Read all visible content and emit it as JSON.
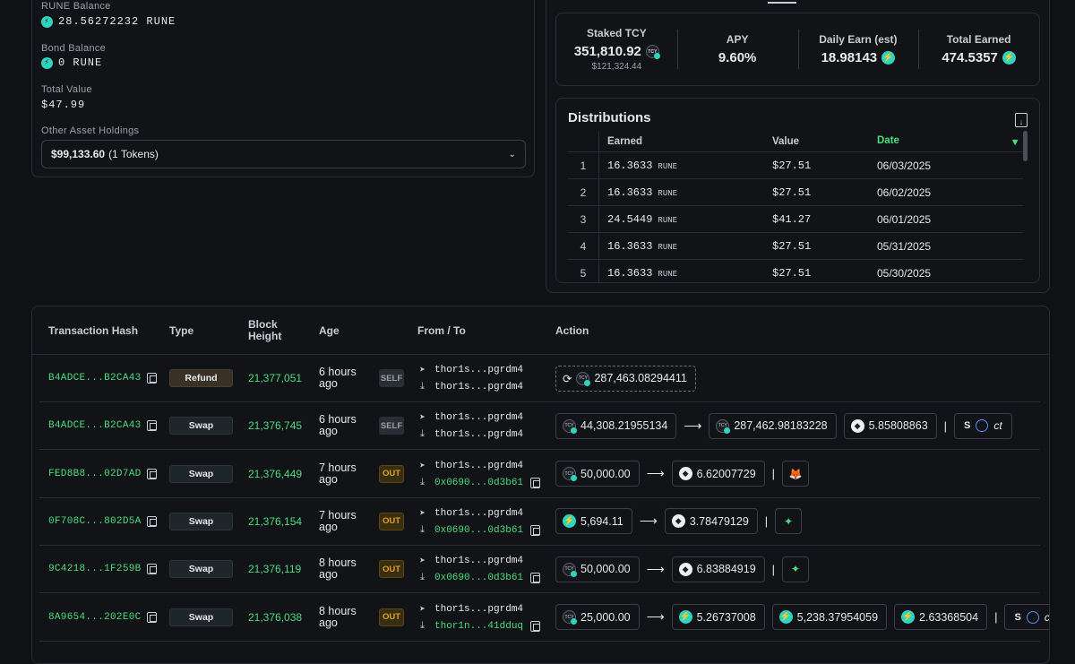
{
  "wallet": {
    "rune_balance_label": "RUNE Balance",
    "rune_balance_value": "28.56272232 RUNE",
    "bond_balance_label": "Bond Balance",
    "bond_balance_value": "0 RUNE",
    "total_value_label": "Total Value",
    "total_value": "$47.99",
    "other_holdings_label": "Other Asset Holdings",
    "other_holdings_amount": "$99,133.60",
    "other_holdings_count": "(1 Tokens)"
  },
  "stats": {
    "staked_label": "Staked TCY",
    "staked_value": "351,810.92",
    "staked_usd": "$121,324.44",
    "apy_label": "APY",
    "apy_value": "9.60%",
    "daily_label": "Daily Earn (est)",
    "daily_value": "18.98143",
    "total_label": "Total Earned",
    "total_value": "474.5357"
  },
  "distributions": {
    "title": "Distributions",
    "col_earned": "Earned",
    "col_value": "Value",
    "col_date": "Date",
    "rows": [
      {
        "idx": "1",
        "earned": "16.3633",
        "unit": "RUNE",
        "value": "$27.51",
        "date": "06/03/2025"
      },
      {
        "idx": "2",
        "earned": "16.3633",
        "unit": "RUNE",
        "value": "$27.51",
        "date": "06/02/2025"
      },
      {
        "idx": "3",
        "earned": "24.5449",
        "unit": "RUNE",
        "value": "$41.27",
        "date": "06/01/2025"
      },
      {
        "idx": "4",
        "earned": "16.3633",
        "unit": "RUNE",
        "value": "$27.51",
        "date": "05/31/2025"
      },
      {
        "idx": "5",
        "earned": "16.3633",
        "unit": "RUNE",
        "value": "$27.51",
        "date": "05/30/2025"
      }
    ]
  },
  "transactions": {
    "headers": {
      "hash": "Transaction Hash",
      "type": "Type",
      "block_line1": "Block",
      "block_line2": "Height",
      "age": "Age",
      "fromto": "From / To",
      "action": "Action"
    },
    "rows": [
      {
        "hash": "B4ADCE...B2CA43",
        "type": "Refund",
        "block": "21,377,051",
        "age1": "6 hours",
        "age2": "ago",
        "dir": "SELF",
        "from": "thor1s...pgrdm4",
        "to": "thor1s...pgrdm4"
      },
      {
        "hash": "B4ADCE...B2CA43",
        "type": "Swap",
        "block": "21,376,745",
        "age1": "6 hours",
        "age2": "ago",
        "dir": "SELF",
        "from": "thor1s...pgrdm4",
        "to": "thor1s...pgrdm4"
      },
      {
        "hash": "FED8B8...02D7AD",
        "type": "Swap",
        "block": "21,376,449",
        "age1": "7 hours",
        "age2": "ago",
        "dir": "OUT",
        "from": "thor1s...pgrdm4",
        "to": "0x0690...0d3b61"
      },
      {
        "hash": "0F708C...802D5A",
        "type": "Swap",
        "block": "21,376,154",
        "age1": "7 hours",
        "age2": "ago",
        "dir": "OUT",
        "from": "thor1s...pgrdm4",
        "to": "0x0690...0d3b61"
      },
      {
        "hash": "9C4218...1F259B",
        "type": "Swap",
        "block": "21,376,119",
        "age1": "8 hours",
        "age2": "ago",
        "dir": "OUT",
        "from": "thor1s...pgrdm4",
        "to": "0x0690...0d3b61"
      },
      {
        "hash": "8A9654...202E0C",
        "type": "Swap",
        "block": "21,376,038",
        "age1": "8 hours",
        "age2": "ago",
        "dir": "OUT",
        "from": "thor1s...pgrdm4",
        "to": "thor1n...41dduq"
      }
    ],
    "actions": {
      "r0_amount": "287,463.08294411",
      "r1_in": "44,308.21955134",
      "r1_out": "287,462.98183228",
      "r1_fee": "5.85808863",
      "r1_affiliate": "ct",
      "r2_in": "50,000.00",
      "r2_out": "6.62007729",
      "r3_in": "5,694.11",
      "r3_out": "3.78479129",
      "r4_in": "50,000.00",
      "r4_out": "6.83884919",
      "r5_in": "25,000.00",
      "r5_out1": "5.26737008",
      "r5_out2": "5,238.37954059",
      "r5_out3": "2.63368504",
      "r5_affiliate": "ct"
    }
  }
}
